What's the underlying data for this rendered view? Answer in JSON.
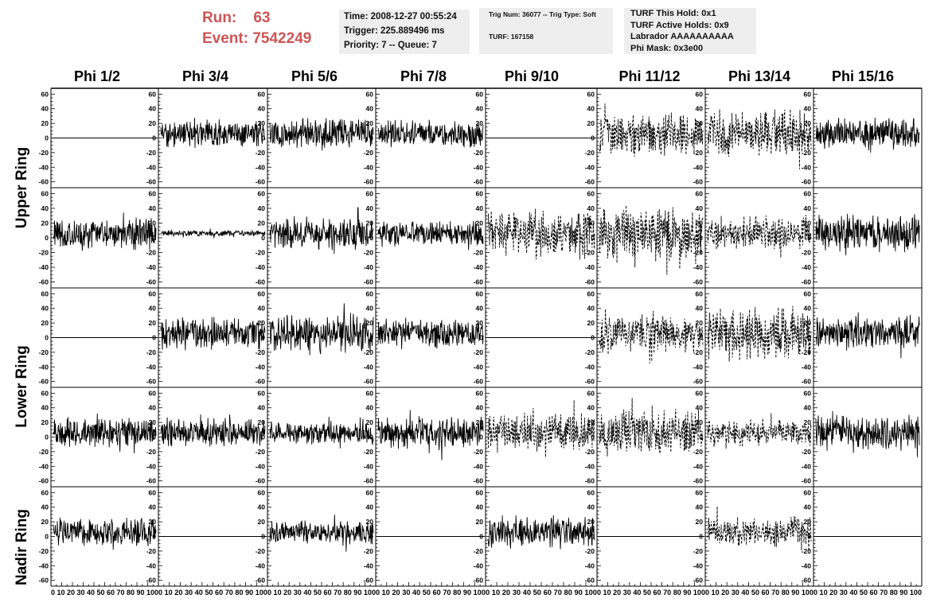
{
  "header": {
    "run_label": "Run:",
    "run_value": "63",
    "event_label": "Event:",
    "event_value": "7542249",
    "time_line": "Time: 2008-12-27 00:55:24",
    "trigger_line": "Trigger: 225.889496 ms",
    "priority_line": "Priority: 7 -- Queue: 7",
    "trig_line": "Trig Num: 36077 -- Trig Type: Soft",
    "turf_line": "TURF: 167158",
    "hold_line": "TURF This Hold: 0x1",
    "active_line": "TURF Active Holds: 0x9",
    "labrador_line": "Labrador AAAAAAAAAA",
    "phimask_line": "Phi Mask: 0x3e00",
    "header_color": "#cc5555",
    "box_color": "#eeeeee"
  },
  "columns": [
    "Phi 1/2",
    "Phi 3/4",
    "Phi 5/6",
    "Phi 7/8",
    "Phi 9/10",
    "Phi 11/12",
    "Phi 13/14",
    "Phi 15/16"
  ],
  "rows": [
    "Upper Ring",
    "Lower Ring",
    "Nadir Ring"
  ],
  "chart_data": {
    "type": "line",
    "x_ticks": [
      0,
      10,
      20,
      30,
      40,
      50,
      60,
      70,
      80,
      90,
      100
    ],
    "x_tick_labels": "0 10 20 30 40 50 60 70 80 90 100",
    "xlim": [
      0,
      100
    ],
    "y_ticks": [
      -60,
      -40,
      -20,
      0,
      20,
      40,
      60
    ],
    "ylim": [
      -68,
      68
    ],
    "grid": false,
    "panels": [
      {
        "row": 0,
        "col": 0,
        "style": "flat",
        "amp": 0
      },
      {
        "row": 0,
        "col": 1,
        "style": "solid",
        "amp": 14
      },
      {
        "row": 0,
        "col": 2,
        "style": "solid",
        "amp": 16
      },
      {
        "row": 0,
        "col": 3,
        "style": "solid",
        "amp": 14
      },
      {
        "row": 0,
        "col": 4,
        "style": "flat",
        "amp": 0
      },
      {
        "row": 0,
        "col": 5,
        "style": "dashed",
        "amp": 22
      },
      {
        "row": 0,
        "col": 6,
        "style": "dashed",
        "amp": 24
      },
      {
        "row": 0,
        "col": 7,
        "style": "solid",
        "amp": 16
      },
      {
        "row": 1,
        "col": 0,
        "style": "solid",
        "amp": 16
      },
      {
        "row": 1,
        "col": 1,
        "style": "solid",
        "amp": 3
      },
      {
        "row": 1,
        "col": 2,
        "style": "solid",
        "amp": 16
      },
      {
        "row": 1,
        "col": 3,
        "style": "solid",
        "amp": 13
      },
      {
        "row": 1,
        "col": 4,
        "style": "dashed",
        "amp": 24
      },
      {
        "row": 1,
        "col": 5,
        "style": "dashed",
        "amp": 28
      },
      {
        "row": 1,
        "col": 6,
        "style": "dashed",
        "amp": 16
      },
      {
        "row": 1,
        "col": 7,
        "style": "solid",
        "amp": 18
      },
      {
        "row": 2,
        "col": 0,
        "style": "flat",
        "amp": 0
      },
      {
        "row": 2,
        "col": 1,
        "style": "solid",
        "amp": 17
      },
      {
        "row": 2,
        "col": 2,
        "style": "solid",
        "amp": 20
      },
      {
        "row": 2,
        "col": 3,
        "style": "solid",
        "amp": 14
      },
      {
        "row": 2,
        "col": 4,
        "style": "flat",
        "amp": 0
      },
      {
        "row": 2,
        "col": 5,
        "style": "dashed",
        "amp": 20
      },
      {
        "row": 2,
        "col": 6,
        "style": "dashed",
        "amp": 28
      },
      {
        "row": 2,
        "col": 7,
        "style": "solid",
        "amp": 16
      },
      {
        "row": 3,
        "col": 0,
        "style": "solid",
        "amp": 15
      },
      {
        "row": 3,
        "col": 1,
        "style": "solid",
        "amp": 15
      },
      {
        "row": 3,
        "col": 2,
        "style": "solid",
        "amp": 12
      },
      {
        "row": 3,
        "col": 3,
        "style": "solid",
        "amp": 16
      },
      {
        "row": 3,
        "col": 4,
        "style": "dashed",
        "amp": 20
      },
      {
        "row": 3,
        "col": 5,
        "style": "dashed",
        "amp": 24
      },
      {
        "row": 3,
        "col": 6,
        "style": "dashed",
        "amp": 14
      },
      {
        "row": 3,
        "col": 7,
        "style": "solid",
        "amp": 18
      },
      {
        "row": 4,
        "col": 0,
        "style": "solid",
        "amp": 14
      },
      {
        "row": 4,
        "col": 1,
        "style": "flat",
        "amp": 0
      },
      {
        "row": 4,
        "col": 2,
        "style": "solid",
        "amp": 12
      },
      {
        "row": 4,
        "col": 3,
        "style": "flat",
        "amp": 0
      },
      {
        "row": 4,
        "col": 4,
        "style": "solid",
        "amp": 16
      },
      {
        "row": 4,
        "col": 5,
        "style": "flat",
        "amp": 0
      },
      {
        "row": 4,
        "col": 6,
        "style": "dashed",
        "amp": 16
      },
      {
        "row": 4,
        "col": 7,
        "style": "flat",
        "amp": 0
      }
    ]
  }
}
